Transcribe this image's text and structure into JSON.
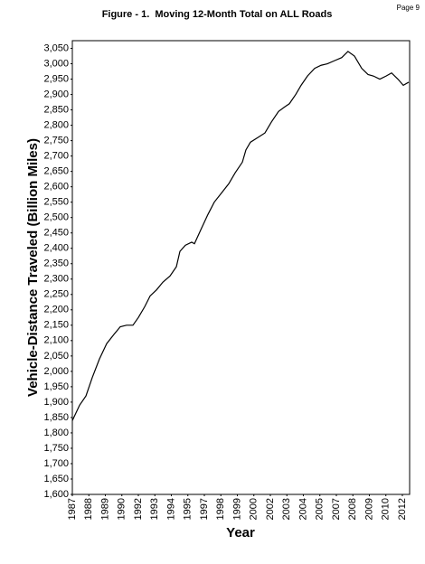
{
  "page_label": "Page 9",
  "chart_data": {
    "type": "line",
    "title": "Figure - 1.  Moving 12-Month Total on ALL Roads",
    "x_label": "Year",
    "y_label": "Vehicle-Distance Traveled (Billion Miles)",
    "color": "#000000",
    "x": [
      1987.0,
      1987.55,
      1988.03,
      1988.51,
      1989.05,
      1989.6,
      1990.15,
      1990.63,
      1991.11,
      1991.59,
      1992.0,
      1992.48,
      1992.89,
      1993.38,
      1993.86,
      1994.4,
      1994.88,
      1995.15,
      1995.56,
      1996.04,
      1996.25,
      1996.73,
      1997.27,
      1997.75,
      1998.3,
      1998.85,
      1999.33,
      1999.88,
      2000.15,
      2000.49,
      2001.04,
      2001.59,
      2002.07,
      2002.62,
      2003.1,
      2003.44,
      2003.92,
      2004.33,
      2004.81,
      2005.36,
      2005.84,
      2006.32,
      2006.86,
      2007.41,
      2007.88,
      2008.37,
      2008.92,
      2009.4,
      2009.81,
      2010.29,
      2010.77,
      2011.18,
      2011.66,
      2012.07,
      2012.48
    ],
    "values": [
      1840,
      1890,
      1920,
      1980,
      2040,
      2090,
      2120,
      2145,
      2150,
      2150,
      2175,
      2210,
      2245,
      2265,
      2290,
      2310,
      2340,
      2390,
      2410,
      2420,
      2415,
      2460,
      2510,
      2550,
      2580,
      2610,
      2645,
      2680,
      2720,
      2745,
      2760,
      2775,
      2810,
      2845,
      2860,
      2870,
      2900,
      2930,
      2960,
      2985,
      2995,
      3000,
      3010,
      3020,
      3040,
      3025,
      2985,
      2965,
      2960,
      2950,
      2960,
      2970,
      2950,
      2930,
      2940
    ],
    "xlim": [
      1987,
      2012.55
    ],
    "xticks": [
      1987,
      {
        "value": 1988.25,
        "label": "1988"
      },
      {
        "value": 1989.5,
        "label": "1989"
      },
      {
        "value": 1990.75,
        "label": "1990"
      },
      1992,
      {
        "value": 1993.25,
        "label": "1993"
      },
      {
        "value": 1994.5,
        "label": "1994"
      },
      {
        "value": 1995.75,
        "label": "1995"
      },
      1997,
      {
        "value": 1998.25,
        "label": "1998"
      },
      {
        "value": 1999.5,
        "label": "1999"
      },
      {
        "value": 2000.75,
        "label": "2000"
      },
      2002,
      {
        "value": 2003.25,
        "label": "2003"
      },
      {
        "value": 2004.5,
        "label": "2004"
      },
      {
        "value": 2005.75,
        "label": "2005"
      },
      2007,
      {
        "value": 2008.25,
        "label": "2008"
      },
      {
        "value": 2009.5,
        "label": "2009"
      },
      {
        "value": 2010.75,
        "label": "2010"
      },
      2012
    ],
    "ylim": [
      1600,
      3075
    ],
    "yticks": [
      {
        "value": 1600,
        "label": "1,600"
      },
      {
        "value": 1650,
        "label": "1,650"
      },
      {
        "value": 1700,
        "label": "1,700"
      },
      {
        "value": 1750,
        "label": "1,750"
      },
      {
        "value": 1800,
        "label": "1,800"
      },
      {
        "value": 1850,
        "label": "1,850"
      },
      {
        "value": 1900,
        "label": "1,900"
      },
      {
        "value": 1950,
        "label": "1,950"
      },
      {
        "value": 2000,
        "label": "2,000"
      },
      {
        "value": 2050,
        "label": "2,050"
      },
      {
        "value": 2100,
        "label": "2,100"
      },
      {
        "value": 2150,
        "label": "2,150"
      },
      {
        "value": 2200,
        "label": "2,200"
      },
      {
        "value": 2250,
        "label": "2,250"
      },
      {
        "value": 2300,
        "label": "2,300"
      },
      {
        "value": 2350,
        "label": "2,350"
      },
      {
        "value": 2400,
        "label": "2,400"
      },
      {
        "value": 2450,
        "label": "2,450"
      },
      {
        "value": 2500,
        "label": "2,500"
      },
      {
        "value": 2550,
        "label": "2,550"
      },
      {
        "value": 2600,
        "label": "2,600"
      },
      {
        "value": 2650,
        "label": "2,650"
      },
      {
        "value": 2700,
        "label": "2,700"
      },
      {
        "value": 2750,
        "label": "2,750"
      },
      {
        "value": 2800,
        "label": "2,800"
      },
      {
        "value": 2850,
        "label": "2,850"
      },
      {
        "value": 2900,
        "label": "2,900"
      },
      {
        "value": 2950,
        "label": "2,950"
      },
      {
        "value": 3000,
        "label": "3,000"
      },
      {
        "value": 3050,
        "label": "3,050"
      }
    ],
    "grid": false
  }
}
